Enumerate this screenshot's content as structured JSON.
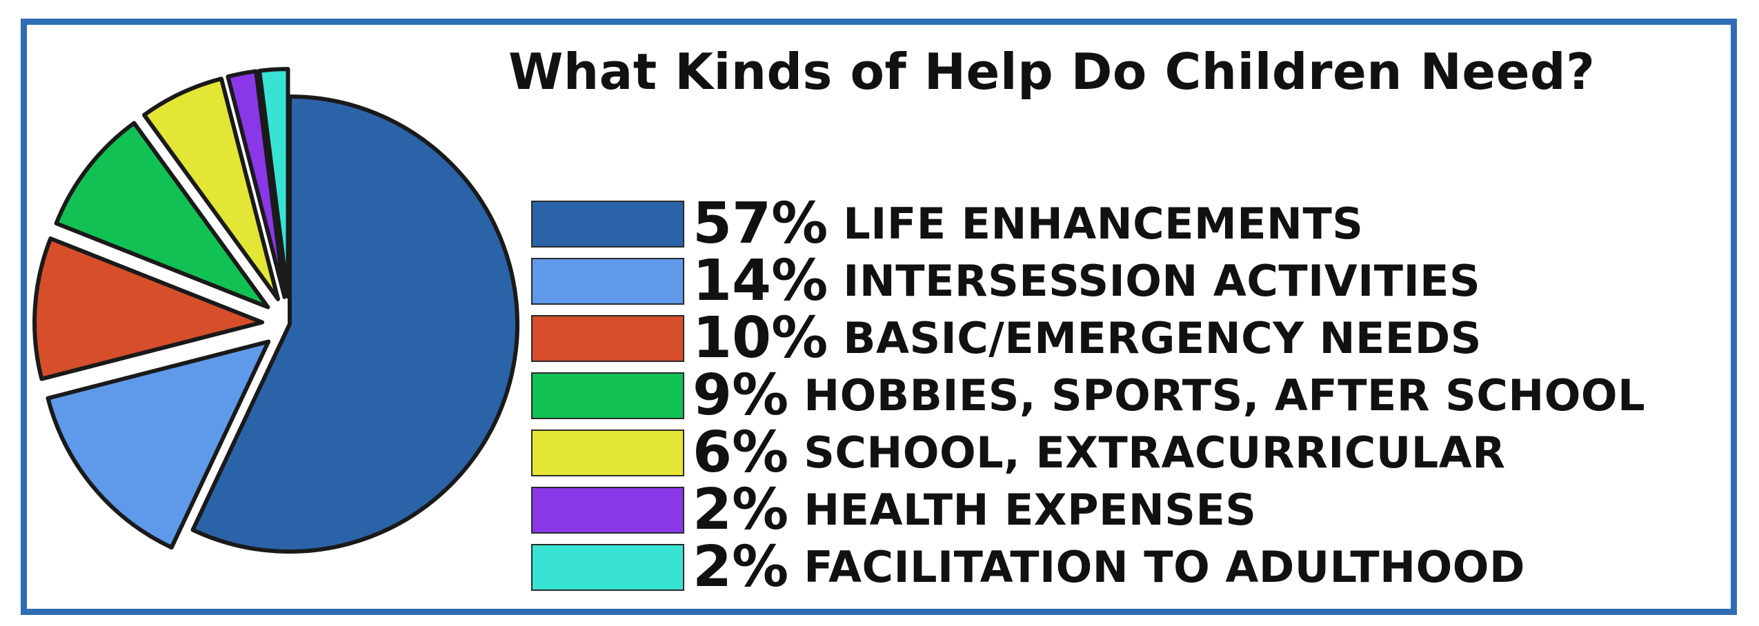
{
  "chart_data": {
    "type": "pie",
    "title": "What Kinds of Help Do Children Need?",
    "legend_placement": "right",
    "exploded": true,
    "slices": [
      {
        "label": "LIFE ENHANCEMENTS",
        "value": 57,
        "value_label": "57%",
        "color": "#2b63a9"
      },
      {
        "label": "INTERSESSION ACTIVITIES",
        "value": 14,
        "value_label": "14%",
        "color": "#5e9ae9"
      },
      {
        "label": "BASIC/EMERGENCY NEEDS",
        "value": 10,
        "value_label": "10%",
        "color": "#d64e2a"
      },
      {
        "label": "HOBBIES, SPORTS, AFTER SCHOOL",
        "value": 9,
        "value_label": "9%",
        "color": "#12c153"
      },
      {
        "label": "SCHOOL, EXTRACURRICULAR",
        "value": 6,
        "value_label": "6%",
        "color": "#e3e634"
      },
      {
        "label": "HEALTH EXPENSES",
        "value": 2,
        "value_label": "2%",
        "color": "#8a37e8"
      },
      {
        "label": "FACILITATION TO ADULTHOOD",
        "value": 2,
        "value_label": "2%",
        "color": "#38e3d4"
      }
    ]
  },
  "colors": {
    "frame": "#2f6db3",
    "text": "#111111",
    "outline": "#1a1a1a"
  }
}
